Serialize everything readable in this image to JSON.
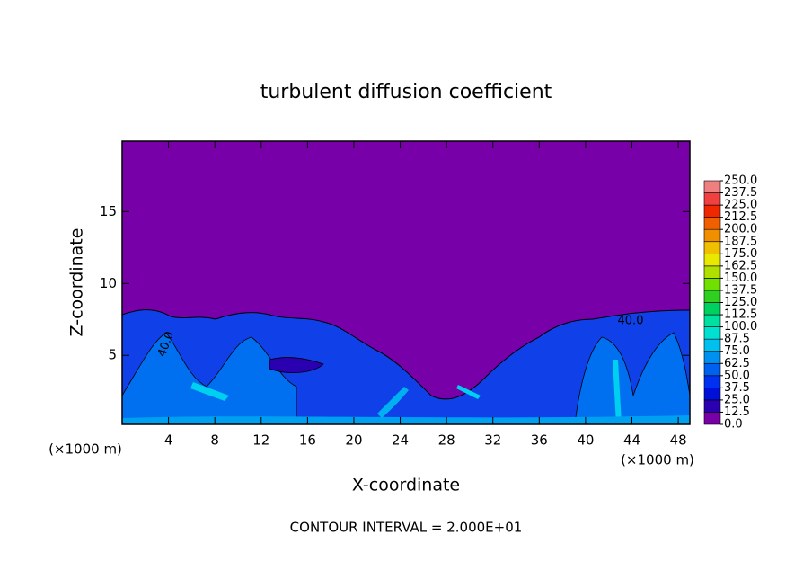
{
  "chart_data": {
    "type": "contour",
    "title": "turbulent diffusion coefficient",
    "x_label": "X-coordinate",
    "y_label": "Z-coordinate",
    "x_unit_left": "(×1000 m)",
    "x_unit_right": "(×1000 m)",
    "footer": "CONTOUR INTERVAL = 2.000E+01",
    "contour_labels": [
      "40.0",
      "40.0"
    ],
    "xlim": [
      0,
      49
    ],
    "xticks": [
      4,
      8,
      12,
      16,
      20,
      24,
      28,
      32,
      36,
      40,
      44,
      48
    ],
    "ylim": [
      0.2,
      19.9
    ],
    "yticks": [
      5,
      10,
      15
    ],
    "background_color": "#7800a8",
    "levels": [
      {
        "value": 0,
        "label": "0.0"
      },
      12.5,
      {
        "value": 25,
        "label": "25.0"
      },
      37.5,
      {
        "value": 50,
        "label": "50.0"
      },
      62.5,
      {
        "value": 75,
        "label": "75.0"
      },
      87.5,
      {
        "value": 100,
        "label": "100.0"
      },
      112.5,
      {
        "value": 125,
        "label": "125.0"
      },
      137.5,
      {
        "value": 150,
        "label": "150.0"
      },
      162.5,
      {
        "value": 175,
        "label": "175.0"
      },
      187.5,
      {
        "value": 200,
        "label": "200.0"
      },
      212.5,
      {
        "value": 225,
        "label": "225.0"
      },
      237.5,
      {
        "value": 250,
        "label": "250.0"
      }
    ],
    "colors": [
      "#7800a8",
      "#2a00b0",
      "#0010d8",
      "#0030f0",
      "#0060f0",
      "#0090f0",
      "#00c0f0",
      "#00e0d0",
      "#00e0a0",
      "#00d060",
      "#30d020",
      "#70e000",
      "#b0e000",
      "#e8e800",
      "#f0c000",
      "#f09000",
      "#f06000",
      "#f02800",
      "#f04040",
      "#f08080"
    ]
  }
}
